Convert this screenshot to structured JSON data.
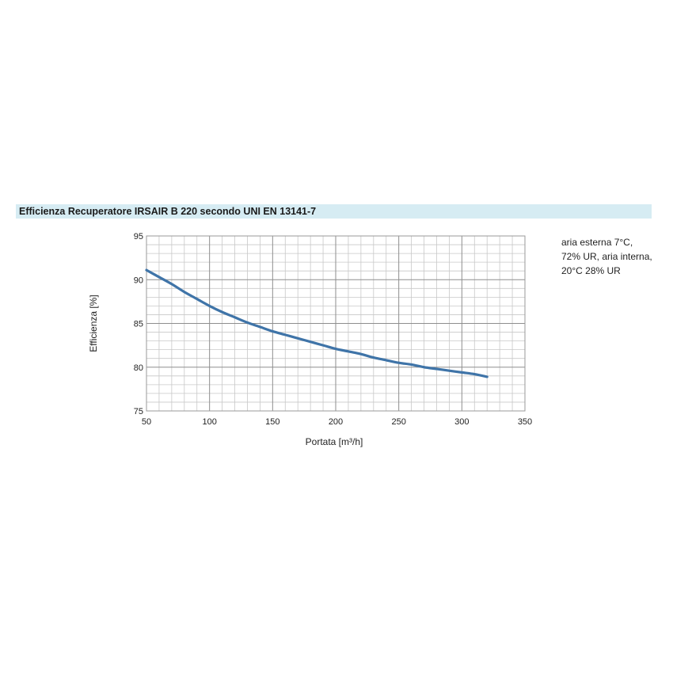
{
  "chart_data": {
    "type": "line",
    "title": "Efficienza Recuperatore IRSAIR B 220 secondo UNI EN 13141-7",
    "xlabel": "Portata [m³/h]",
    "ylabel": "Efficienza [%]",
    "xlim": [
      50,
      350
    ],
    "ylim": [
      75,
      95
    ],
    "x_ticks": [
      50,
      100,
      150,
      200,
      250,
      300,
      350
    ],
    "y_ticks": [
      75,
      80,
      85,
      90,
      95
    ],
    "grid": true,
    "series": [
      {
        "color": "#3f74a8",
        "x": [
          50,
          60,
          70,
          80,
          90,
          100,
          110,
          120,
          130,
          140,
          150,
          160,
          170,
          180,
          190,
          200,
          210,
          220,
          230,
          240,
          250,
          260,
          270,
          280,
          290,
          300,
          310,
          320
        ],
        "y": [
          91.1,
          90.3,
          89.5,
          88.6,
          87.8,
          87.0,
          86.3,
          85.7,
          85.1,
          84.6,
          84.1,
          83.7,
          83.3,
          82.9,
          82.5,
          82.1,
          81.8,
          81.5,
          81.1,
          80.8,
          80.5,
          80.3,
          80.0,
          79.8,
          79.6,
          79.4,
          79.2,
          78.9
        ]
      }
    ],
    "annotation": [
      "aria esterna 7°C,",
      "72% UR, aria interna,",
      "20°C 28% UR"
    ]
  }
}
